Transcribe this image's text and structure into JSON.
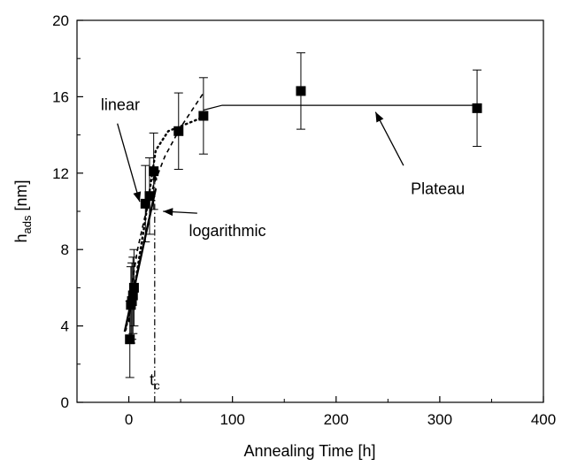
{
  "chart_data": {
    "type": "scatter",
    "title": "",
    "xlabel": "Annealing Time [h]",
    "ylabel_main": "h",
    "ylabel_sub": "ads",
    "ylabel_unit": "[nm]",
    "xlim": [
      -50,
      400
    ],
    "ylim": [
      0,
      20
    ],
    "xticks": [
      0,
      100,
      200,
      300,
      400
    ],
    "yticks": [
      0,
      4,
      8,
      12,
      16,
      20
    ],
    "grid": false,
    "series": [
      {
        "points": [
          {
            "x": 1,
            "y": 3.3,
            "err": 2.0
          },
          {
            "x": 2,
            "y": 5.1,
            "err": 2.0
          },
          {
            "x": 3,
            "y": 5.3,
            "err": 2.0
          },
          {
            "x": 4,
            "y": 5.6,
            "err": 2.0
          },
          {
            "x": 5,
            "y": 6.0,
            "err": 2.0
          },
          {
            "x": 16,
            "y": 10.4,
            "err": 2.0
          },
          {
            "x": 20,
            "y": 10.8,
            "err": 2.0
          },
          {
            "x": 24,
            "y": 12.1,
            "err": 2.0
          },
          {
            "x": 48,
            "y": 14.2,
            "err": 2.0
          },
          {
            "x": 72,
            "y": 15.0,
            "err": 2.0
          },
          {
            "x": 166,
            "y": 16.3,
            "err": 2.0
          },
          {
            "x": 336,
            "y": 15.4,
            "err": 2.0
          }
        ]
      }
    ],
    "fits": {
      "linear": [
        [
          -4,
          3.7
        ],
        [
          26,
          11.2
        ]
      ],
      "logarithmic": [
        [
          0,
          4.2
        ],
        [
          3,
          6.1
        ],
        [
          8,
          7.9
        ],
        [
          15,
          9.6
        ],
        [
          24,
          11.4
        ],
        [
          35,
          12.9
        ],
        [
          50,
          14.4
        ],
        [
          72,
          16.2
        ]
      ],
      "dotted": [
        [
          -3,
          3.8
        ],
        [
          6,
          6.2
        ],
        [
          16,
          9.6
        ],
        [
          26,
          13.2
        ],
        [
          38,
          14.2
        ],
        [
          52,
          14.5
        ],
        [
          75,
          15.0
        ]
      ],
      "plateau": [
        [
          72,
          15.3
        ],
        [
          90,
          15.55
        ],
        [
          336,
          15.55
        ]
      ],
      "tc_line": [
        [
          25,
          0
        ],
        [
          25,
          12.0
        ]
      ]
    },
    "annotations": [
      {
        "text": "linear",
        "x": -27,
        "y": 15.3,
        "arrow_to": [
          10.5,
          10.5
        ],
        "arrow_from": [
          -11,
          14.6
        ]
      },
      {
        "text": "logarithmic",
        "x": 58,
        "y": 8.7,
        "arrow_to": [
          33,
          10.0
        ],
        "arrow_from": [
          66,
          9.9
        ]
      },
      {
        "text": "Plateau",
        "x": 272,
        "y": 10.9,
        "arrow_to": [
          238,
          15.2
        ],
        "arrow_from": [
          265,
          12.4
        ]
      },
      {
        "text": "t",
        "sub": "c",
        "x": 25,
        "y": 0.9
      }
    ]
  }
}
